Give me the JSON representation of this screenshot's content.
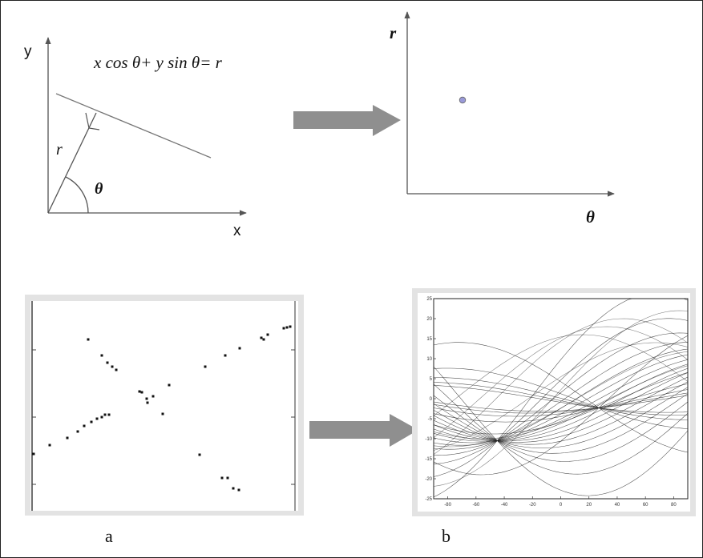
{
  "hough_line_diagram": {
    "axis_x_label": "x",
    "axis_y_label": "y",
    "equation": "x cos θ+ y sin θ= r",
    "r_label": "r",
    "theta_label": "θ"
  },
  "hough_space_diagram": {
    "axis_r_label": "r",
    "axis_theta_label": "θ"
  },
  "panel_a": {
    "caption": "a",
    "points": [
      [
        42,
        567
      ],
      [
        62,
        556
      ],
      [
        84,
        547
      ],
      [
        97,
        539
      ],
      [
        105,
        532
      ],
      [
        114,
        527
      ],
      [
        121,
        523
      ],
      [
        127,
        521
      ],
      [
        131,
        518
      ],
      [
        136,
        518
      ],
      [
        110,
        424
      ],
      [
        127,
        444
      ],
      [
        134,
        453
      ],
      [
        140,
        458
      ],
      [
        145,
        462
      ],
      [
        174,
        489
      ],
      [
        177,
        490
      ],
      [
        183,
        498
      ],
      [
        184,
        503
      ],
      [
        191,
        495
      ],
      [
        203,
        517
      ],
      [
        211,
        481
      ],
      [
        256,
        458
      ],
      [
        281,
        444
      ],
      [
        299,
        435
      ],
      [
        326,
        422
      ],
      [
        329,
        424
      ],
      [
        334,
        418
      ],
      [
        354,
        410
      ],
      [
        358,
        409
      ],
      [
        362,
        408
      ],
      [
        249,
        568
      ],
      [
        277,
        597
      ],
      [
        284,
        597
      ],
      [
        291,
        610
      ],
      [
        298,
        612
      ]
    ]
  },
  "panel_b": {
    "caption": "b",
    "x_ticks": [
      "-80",
      "-60",
      "-40",
      "-20",
      "0",
      "20",
      "40",
      "60",
      "80"
    ],
    "y_ticks": [
      "25",
      "20",
      "15",
      "10",
      "5",
      "0",
      "-5",
      "-10",
      "-15",
      "-20",
      "-25"
    ]
  },
  "colors": {
    "arrow": "#8f8f8f",
    "point_fill": "#9a9ad8",
    "panel_frame": "#e3e3e3",
    "line_gray": "#777777"
  }
}
